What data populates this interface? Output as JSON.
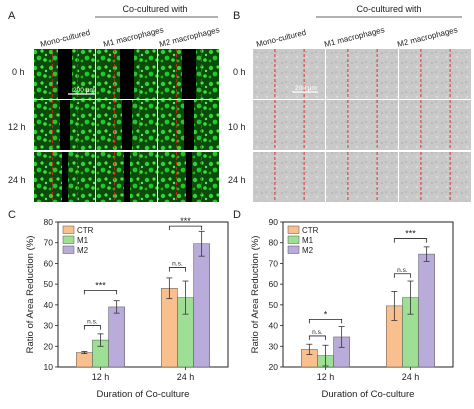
{
  "panel_a": {
    "letter": "A",
    "header": "Co-cultured with",
    "columns": [
      "Mono-cultured",
      "M1 macrophages",
      "M2 macrophages"
    ],
    "rows": [
      "0 h",
      "12 h",
      "24 h"
    ],
    "scale_bar": "200 μm"
  },
  "panel_b": {
    "letter": "B",
    "header": "Co-cultured with",
    "columns": [
      "Mono-cultured",
      "M1 macrophages",
      "M2 macrophages"
    ],
    "rows": [
      "0 h",
      "10 h",
      "24 h"
    ],
    "scale_bar": "200 μm"
  },
  "colors": {
    "CTR": "#f9c08e",
    "M1": "#9ede95",
    "M2": "#b9acdb",
    "fluorescence": "#2fd32f",
    "wound_line": "#e02020"
  },
  "chart_data": [
    {
      "panel": "C",
      "type": "bar",
      "categories": [
        "12 h",
        "24 h"
      ],
      "series": [
        {
          "name": "CTR",
          "values": [
            17,
            48
          ],
          "errors": [
            0.5,
            5
          ]
        },
        {
          "name": "M1",
          "values": [
            23,
            43.5
          ],
          "errors": [
            3,
            8
          ]
        },
        {
          "name": "M2",
          "values": [
            39,
            69.5
          ],
          "errors": [
            3,
            6
          ]
        }
      ],
      "xlabel": "Duration of Co-culture",
      "ylabel": "Ratio of Area Reduction (%)",
      "ylim": [
        10,
        80
      ],
      "yticks": [
        10,
        20,
        30,
        40,
        50,
        60,
        70,
        80
      ],
      "legend": "top-left",
      "significance": [
        {
          "group": 0,
          "from": 0,
          "to": 1,
          "label": "n.s.",
          "y": 30
        },
        {
          "group": 0,
          "from": 0,
          "to": 2,
          "label": "***",
          "y": 47
        },
        {
          "group": 1,
          "from": 0,
          "to": 1,
          "label": "n.s.",
          "y": 58
        },
        {
          "group": 1,
          "from": 0,
          "to": 2,
          "label": "***",
          "y": 78
        }
      ]
    },
    {
      "panel": "D",
      "type": "bar",
      "categories": [
        "12 h",
        "24 h"
      ],
      "series": [
        {
          "name": "CTR",
          "values": [
            28.5,
            49.5
          ],
          "errors": [
            2.5,
            7
          ]
        },
        {
          "name": "M1",
          "values": [
            25.5,
            53.5
          ],
          "errors": [
            5,
            8
          ]
        },
        {
          "name": "M2",
          "values": [
            34.5,
            74.5
          ],
          "errors": [
            5,
            3.5
          ]
        }
      ],
      "xlabel": "Duration of Co-culture",
      "ylabel": "Ratio of Area Reduction (%)",
      "ylim": [
        20,
        90
      ],
      "yticks": [
        20,
        30,
        40,
        50,
        60,
        70,
        80,
        90
      ],
      "legend": "top-left",
      "significance": [
        {
          "group": 0,
          "from": 0,
          "to": 1,
          "label": "n.s.",
          "y": 35
        },
        {
          "group": 0,
          "from": 0,
          "to": 2,
          "label": "*",
          "y": 43
        },
        {
          "group": 1,
          "from": 0,
          "to": 1,
          "label": "n.s.",
          "y": 65
        },
        {
          "group": 1,
          "from": 0,
          "to": 2,
          "label": "***",
          "y": 82
        }
      ]
    }
  ]
}
